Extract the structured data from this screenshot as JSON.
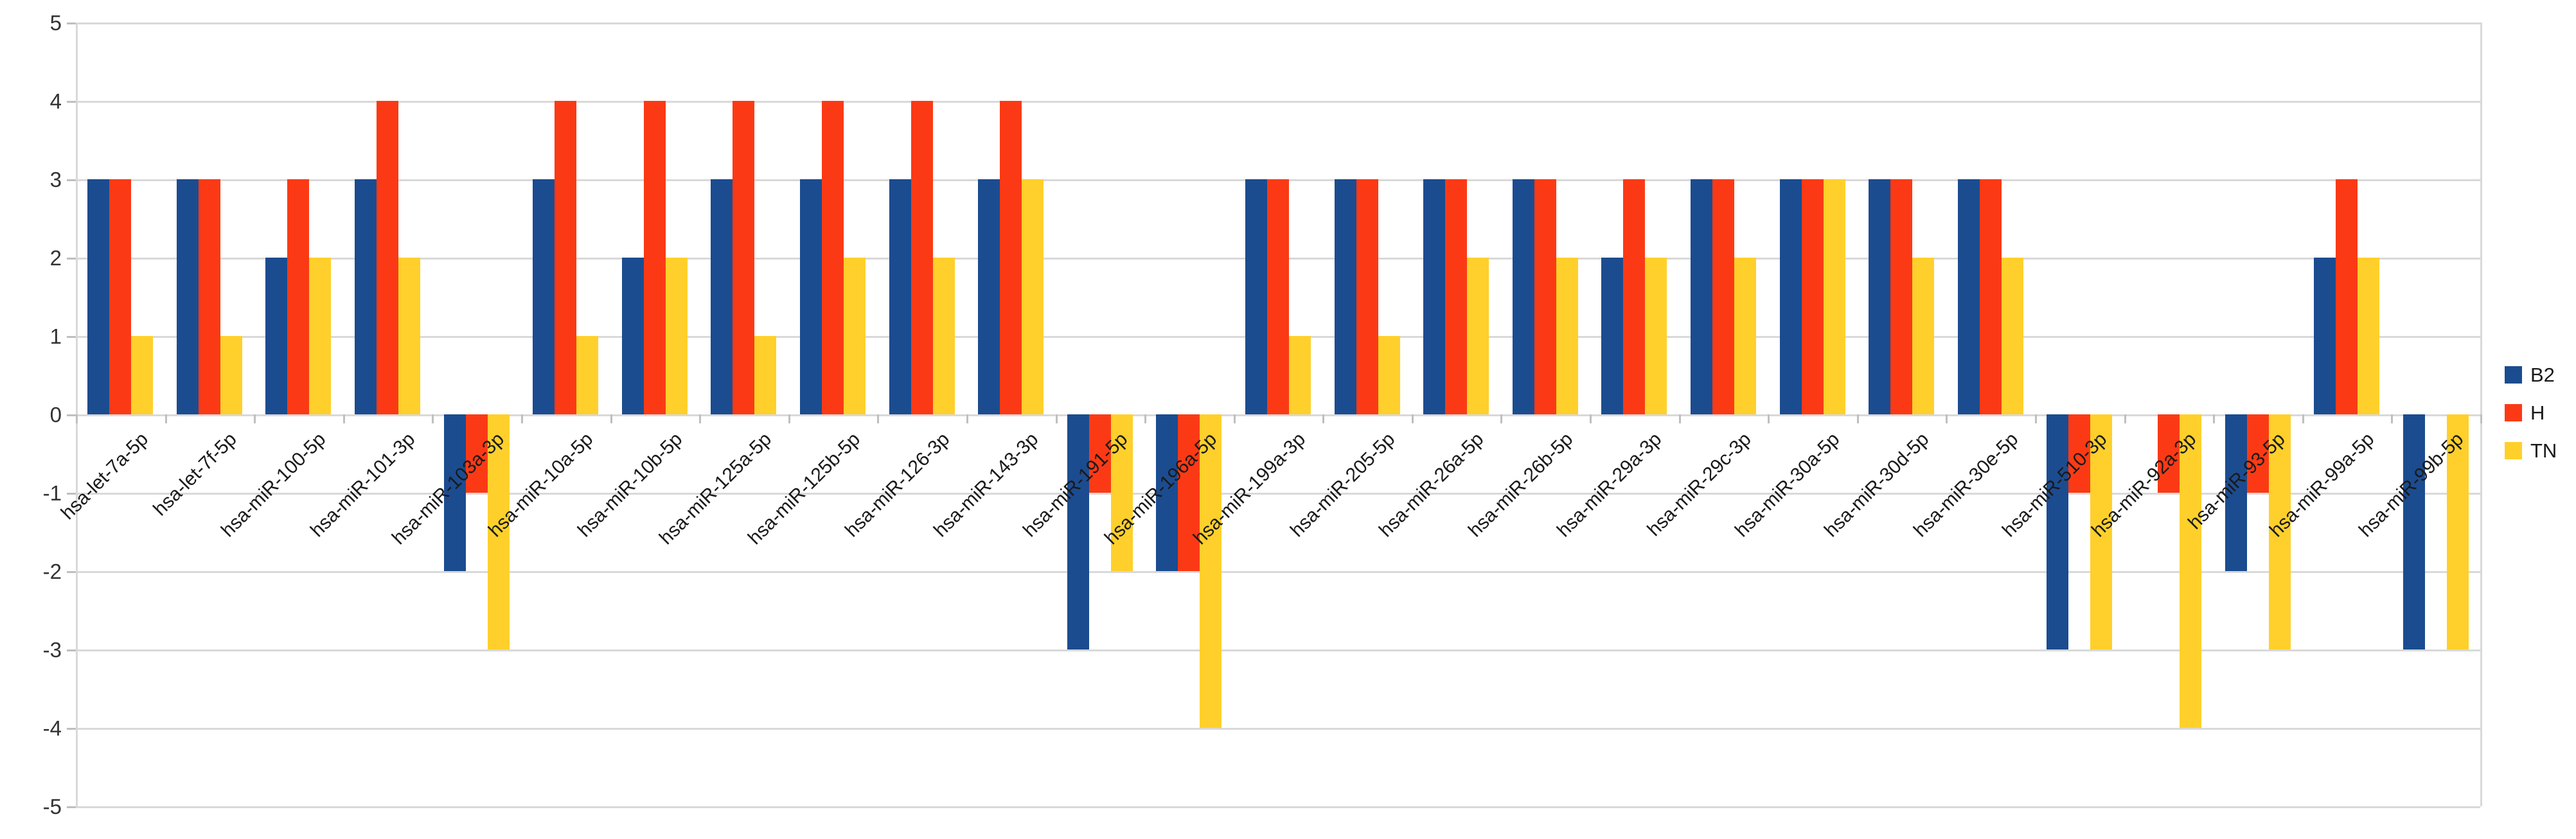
{
  "chart_data": {
    "type": "bar",
    "title": "",
    "xlabel": "",
    "ylabel": "",
    "ylim": [
      -5,
      5
    ],
    "yticks": [
      5,
      4,
      3,
      2,
      1,
      0,
      -1,
      -2,
      -3,
      -4,
      -5
    ],
    "grid": true,
    "legend_position": "right",
    "categories": [
      "hsa-let-7a-5p",
      "hsa-let-7f-5p",
      "hsa-miR-100-5p",
      "hsa-miR-101-3p",
      "hsa-miR-103a-3p",
      "hsa-miR-10a-5p",
      "hsa-miR-10b-5p",
      "hsa-miR-125a-5p",
      "hsa-miR-125b-5p",
      "hsa-miR-126-3p",
      "hsa-miR-143-3p",
      "hsa-miR-191-5p",
      "hsa-miR-196a-5p",
      "hsa-miR-199a-3p",
      "hsa-miR-205-5p",
      "hsa-miR-26a-5p",
      "hsa-miR-26b-5p",
      "hsa-miR-29a-3p",
      "hsa-miR-29c-3p",
      "hsa-miR-30a-5p",
      "hsa-miR-30d-5p",
      "hsa-miR-30e-5p",
      "hsa-miR-510-3p",
      "hsa-miR-92a-3p",
      "hsa-miR-93-5p",
      "hsa-miR-99a-5p",
      "hsa-miR-99b-5p"
    ],
    "series": [
      {
        "name": "B2",
        "color": "#1b4c90",
        "values": [
          3,
          3,
          2,
          3,
          -2,
          3,
          2,
          3,
          3,
          3,
          3,
          -3,
          -2,
          3,
          3,
          3,
          3,
          2,
          3,
          3,
          3,
          3,
          -3,
          0,
          -2,
          2,
          -3
        ]
      },
      {
        "name": "H",
        "color": "#fb3a15",
        "values": [
          3,
          3,
          3,
          4,
          -1,
          4,
          4,
          4,
          4,
          4,
          4,
          -1,
          -2,
          3,
          3,
          3,
          3,
          3,
          3,
          3,
          3,
          3,
          -1,
          -1,
          -1,
          3,
          0
        ]
      },
      {
        "name": "TN",
        "color": "#ffd02b",
        "values": [
          1,
          1,
          2,
          2,
          -3,
          1,
          2,
          1,
          2,
          2,
          3,
          -2,
          -4,
          1,
          1,
          2,
          2,
          2,
          2,
          3,
          2,
          2,
          -3,
          -4,
          -3,
          2,
          -3
        ]
      }
    ]
  },
  "colors": {
    "gridline": "#d9d9d9",
    "tick": "#bfbfbf",
    "axis_text": "#333333",
    "label_text": "#1a1a1a",
    "background": "#ffffff"
  }
}
